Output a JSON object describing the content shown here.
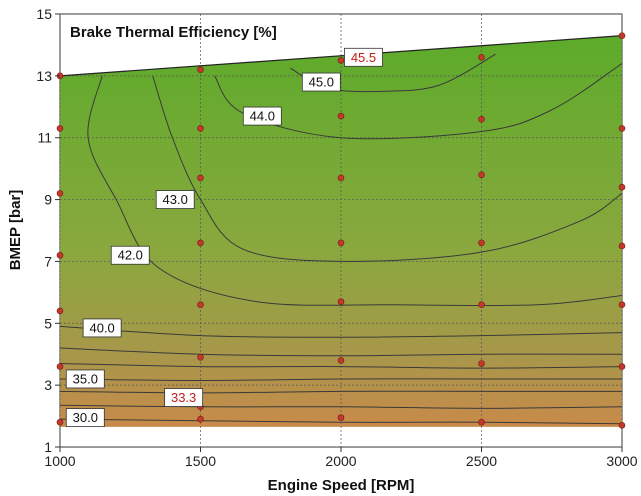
{
  "chart_data": {
    "type": "contour",
    "title": "Brake Thermal Efficiency [%]",
    "xlabel": "Engine Speed [RPM]",
    "ylabel": "BMEP [bar]",
    "xlim": [
      1000,
      3000
    ],
    "ylim": [
      1,
      15
    ],
    "xticks": [
      "1000",
      "1500",
      "2000",
      "2500",
      "3000"
    ],
    "yticks": [
      "1",
      "3",
      "5",
      "7",
      "9",
      "11",
      "13",
      "15"
    ],
    "grid": true,
    "colors": {
      "low": "#c98a4a",
      "mid": "#8aa83e",
      "high": "#5cab2a",
      "contour_line": "#3a3a3a",
      "points": "#c0392b",
      "highlight_text": "#c41a1a"
    },
    "contour_levels": [
      "30.0",
      "35.0",
      "40.0",
      "42.0",
      "43.0",
      "44.0",
      "45.0"
    ],
    "max_label": "45.5",
    "min_label": "33.3",
    "contour_lines": [
      {
        "level": "30.0",
        "points": [
          [
            1000,
            1.9
          ],
          [
            1500,
            1.85
          ],
          [
            2000,
            1.8
          ],
          [
            2500,
            1.8
          ],
          [
            3000,
            1.75
          ]
        ]
      },
      {
        "level": "",
        "points": [
          [
            1000,
            2.35
          ],
          [
            1500,
            2.3
          ],
          [
            2000,
            2.3
          ],
          [
            2500,
            2.25
          ],
          [
            3000,
            2.3
          ]
        ]
      },
      {
        "level": "",
        "points": [
          [
            1000,
            2.8
          ],
          [
            1500,
            2.75
          ],
          [
            2000,
            2.8
          ],
          [
            2500,
            2.8
          ],
          [
            3000,
            2.8
          ]
        ]
      },
      {
        "level": "35.0",
        "points": [
          [
            1000,
            3.2
          ],
          [
            1500,
            3.15
          ],
          [
            2000,
            3.2
          ],
          [
            2500,
            3.2
          ],
          [
            3000,
            3.2
          ]
        ]
      },
      {
        "level": "",
        "points": [
          [
            1000,
            3.7
          ],
          [
            1500,
            3.6
          ],
          [
            2000,
            3.6
          ],
          [
            2500,
            3.55
          ],
          [
            3000,
            3.6
          ]
        ]
      },
      {
        "level": "",
        "points": [
          [
            1000,
            4.2
          ],
          [
            1500,
            4.0
          ],
          [
            2000,
            3.95
          ],
          [
            2500,
            4.0
          ],
          [
            3000,
            4.0
          ]
        ]
      },
      {
        "level": "40.0",
        "points": [
          [
            1000,
            4.9
          ],
          [
            1500,
            4.6
          ],
          [
            2000,
            4.55
          ],
          [
            2500,
            4.6
          ],
          [
            3000,
            4.7
          ]
        ]
      },
      {
        "level": "42.0",
        "points": [
          [
            1150,
            13
          ],
          [
            1100,
            11
          ],
          [
            1200,
            9
          ],
          [
            1350,
            6.8
          ],
          [
            1700,
            5.7
          ],
          [
            2200,
            5.6
          ],
          [
            2700,
            5.6
          ],
          [
            3000,
            5.9
          ]
        ]
      },
      {
        "level": "43.0",
        "points": [
          [
            1330,
            13
          ],
          [
            1400,
            11
          ],
          [
            1500,
            9
          ],
          [
            1650,
            7.4
          ],
          [
            2000,
            7.0
          ],
          [
            2500,
            7.3
          ],
          [
            2850,
            8.3
          ],
          [
            3000,
            9.2
          ]
        ]
      },
      {
        "level": "44.0",
        "points": [
          [
            1550,
            13
          ],
          [
            1650,
            11.8
          ],
          [
            2000,
            11.0
          ],
          [
            2500,
            11.2
          ],
          [
            2750,
            11.9
          ],
          [
            3000,
            13.4
          ]
        ]
      },
      {
        "level": "45.0",
        "points": [
          [
            1820,
            13.25
          ],
          [
            1950,
            12.6
          ],
          [
            2150,
            12.5
          ],
          [
            2350,
            12.7
          ],
          [
            2550,
            13.7
          ]
        ]
      }
    ],
    "label_positions": [
      {
        "text": "30.0",
        "x": 1090,
        "y": 1.95
      },
      {
        "text": "35.0",
        "x": 1090,
        "y": 3.2
      },
      {
        "text": "40.0",
        "x": 1150,
        "y": 4.85
      },
      {
        "text": "42.0",
        "x": 1250,
        "y": 7.2
      },
      {
        "text": "43.0",
        "x": 1410,
        "y": 9.0
      },
      {
        "text": "44.0",
        "x": 1720,
        "y": 11.7
      },
      {
        "text": "45.0",
        "x": 1930,
        "y": 12.8
      },
      {
        "text": "45.5",
        "x": 2080,
        "y": 13.6,
        "red": true
      },
      {
        "text": "33.3",
        "x": 1440,
        "y": 2.6,
        "red": true
      }
    ],
    "measurement_points": [
      {
        "x": 1000,
        "y": 1.8
      },
      {
        "x": 1000,
        "y": 3.6
      },
      {
        "x": 1000,
        "y": 5.4
      },
      {
        "x": 1000,
        "y": 7.2
      },
      {
        "x": 1000,
        "y": 9.2
      },
      {
        "x": 1000,
        "y": 11.3
      },
      {
        "x": 1000,
        "y": 13.0
      },
      {
        "x": 1500,
        "y": 1.9
      },
      {
        "x": 1500,
        "y": 2.3
      },
      {
        "x": 1500,
        "y": 3.9
      },
      {
        "x": 1500,
        "y": 5.6
      },
      {
        "x": 1500,
        "y": 7.6
      },
      {
        "x": 1500,
        "y": 9.7
      },
      {
        "x": 1500,
        "y": 11.3
      },
      {
        "x": 1500,
        "y": 13.2
      },
      {
        "x": 2000,
        "y": 1.95
      },
      {
        "x": 2000,
        "y": 3.8
      },
      {
        "x": 2000,
        "y": 5.7
      },
      {
        "x": 2000,
        "y": 7.6
      },
      {
        "x": 2000,
        "y": 9.7
      },
      {
        "x": 2000,
        "y": 11.7
      },
      {
        "x": 2000,
        "y": 13.5
      },
      {
        "x": 2500,
        "y": 1.8
      },
      {
        "x": 2500,
        "y": 3.7
      },
      {
        "x": 2500,
        "y": 5.6
      },
      {
        "x": 2500,
        "y": 7.6
      },
      {
        "x": 2500,
        "y": 9.8
      },
      {
        "x": 2500,
        "y": 11.6
      },
      {
        "x": 2500,
        "y": 13.6
      },
      {
        "x": 3000,
        "y": 1.7
      },
      {
        "x": 3000,
        "y": 3.6
      },
      {
        "x": 3000,
        "y": 5.6
      },
      {
        "x": 3000,
        "y": 7.5
      },
      {
        "x": 3000,
        "y": 9.4
      },
      {
        "x": 3000,
        "y": 11.3
      },
      {
        "x": 3000,
        "y": 14.3
      }
    ],
    "full_load_boundary": [
      [
        1000,
        13.0
      ],
      [
        3000,
        14.3
      ]
    ]
  }
}
